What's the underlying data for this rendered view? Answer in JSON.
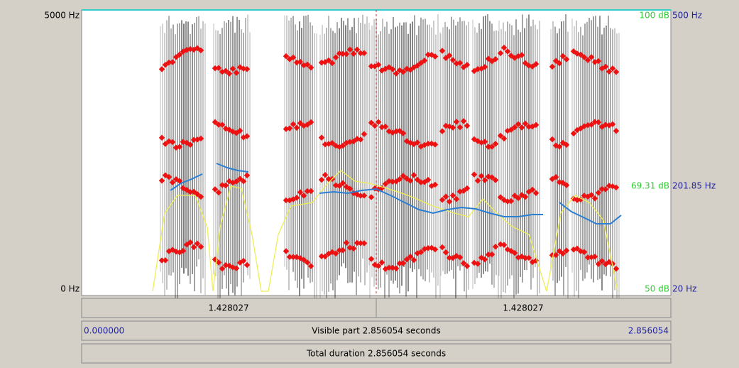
{
  "spectrogram": {
    "y_axis_left": {
      "top": "5000 Hz",
      "bottom": "0 Hz"
    },
    "intensity_axis": {
      "top": "100 dB",
      "cursor": "69.31 dB",
      "bottom": "50 dB"
    },
    "pitch_axis": {
      "top": "500 Hz",
      "cursor": "201.85 Hz",
      "bottom": "20 Hz"
    }
  },
  "selection_bar": {
    "left": "1.428027",
    "right": "1.428027"
  },
  "visible_bar": {
    "start": "0.000000",
    "label": "Visible part 2.856054 seconds",
    "end": "2.856054"
  },
  "total_bar": {
    "label": "Total duration 2.856054 seconds"
  }
}
